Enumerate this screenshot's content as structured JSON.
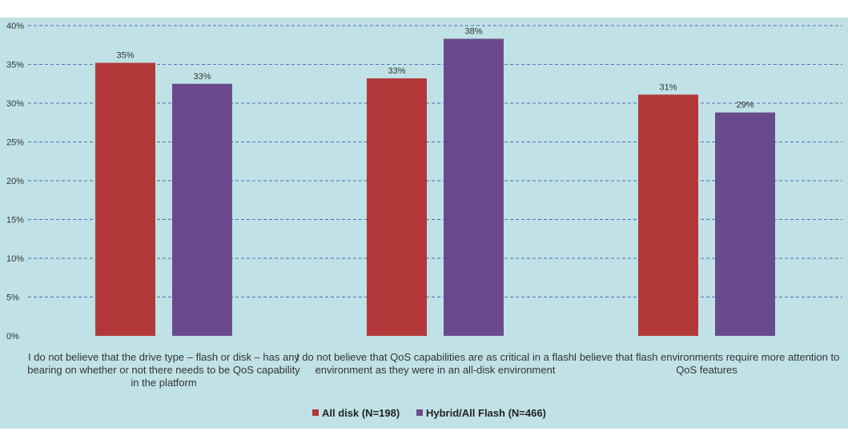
{
  "chart_data": {
    "type": "bar",
    "categories": [
      [
        "I do not believe that the drive type – flash or disk – has any",
        "bearing on whether or not there needs to be QoS capability",
        "in the platform"
      ],
      [
        "I do not believe that QoS capabilities are as critical in a flash",
        "environment as they were in an all-disk environment"
      ],
      [
        "I believe that flash environments require more attention to",
        "QoS features"
      ]
    ],
    "series": [
      {
        "name": "All disk (N=198)",
        "values": [
          35.2,
          33.2,
          31.1
        ],
        "labels": [
          "35%",
          "33%",
          "31%"
        ],
        "color": "#b2383a"
      },
      {
        "name": "Hybrid/All Flash (N=466)",
        "values": [
          32.5,
          38.3,
          28.8
        ],
        "labels": [
          "33%",
          "38%",
          "29%"
        ],
        "color": "#6a4a8c"
      }
    ],
    "y_ticks": [
      "0%",
      "5%",
      "10%",
      "15%",
      "20%",
      "25%",
      "30%",
      "35%",
      "40%"
    ],
    "ylim": [
      0,
      40
    ],
    "grid": true,
    "legend_position": "bottom-center",
    "colors": {
      "plot_bg": "#c0e2e6",
      "grid": "#4a6fb3",
      "text": "#333333"
    }
  }
}
